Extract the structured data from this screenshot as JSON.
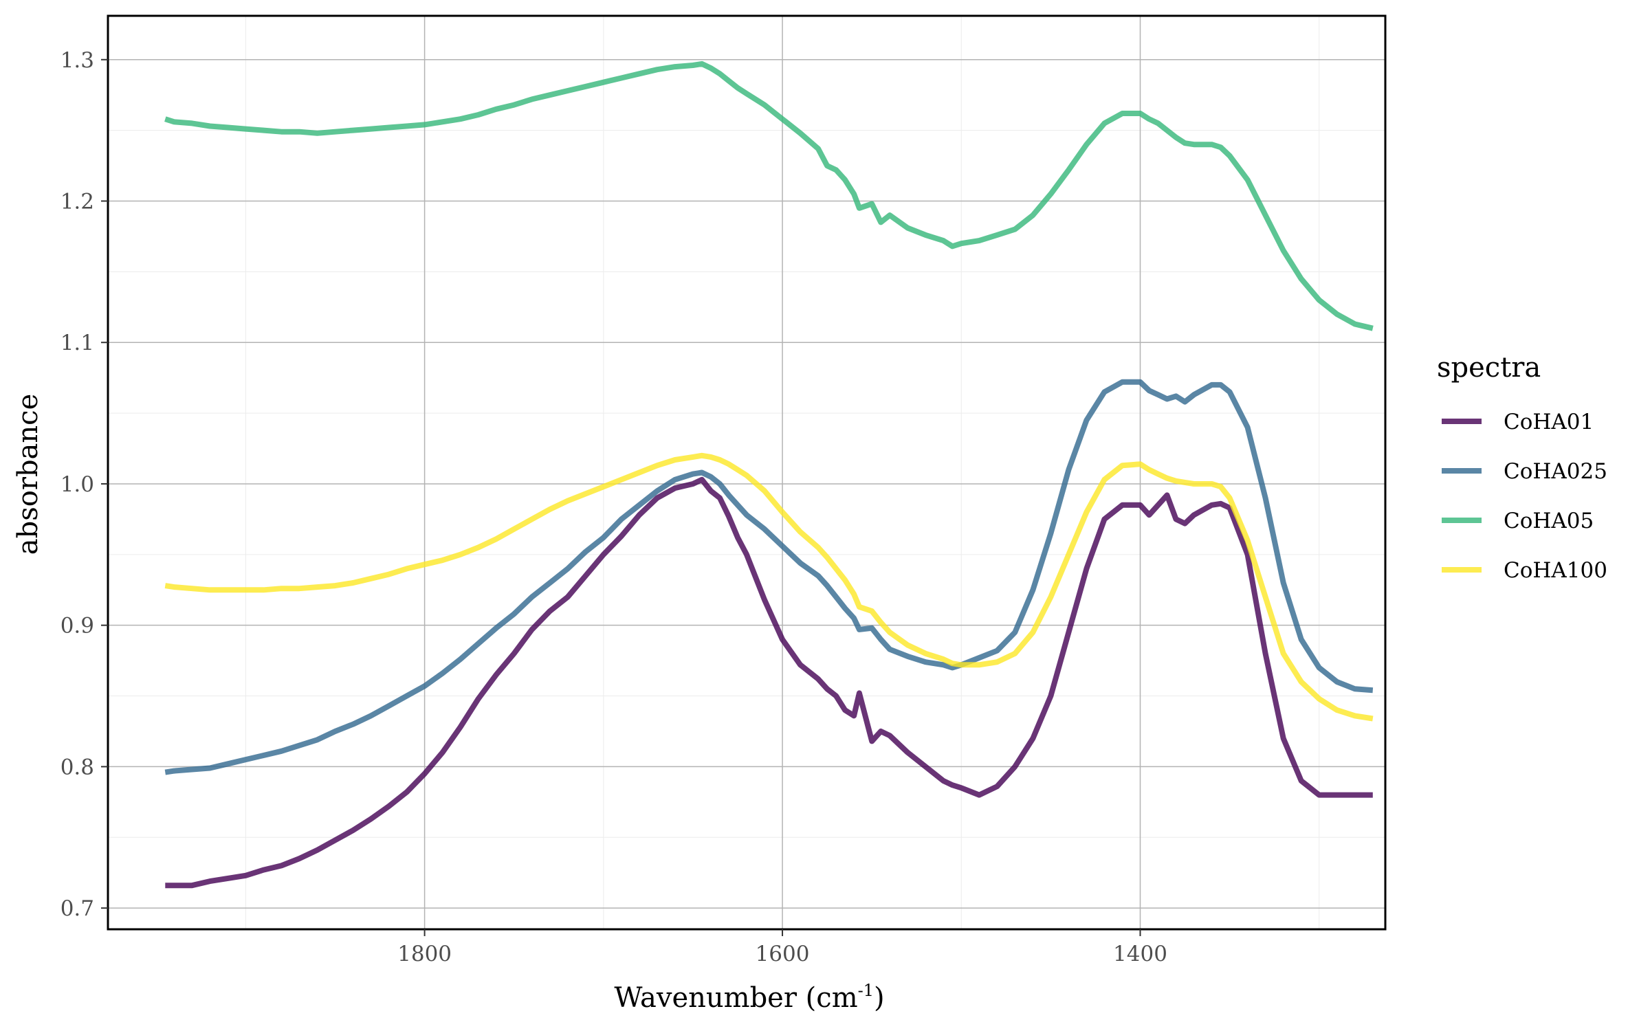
{
  "chart_data": {
    "type": "line",
    "title": "",
    "xlabel": "Wavenumber (cm",
    "xlabel_sup": "-1",
    "xlabel_close": ")",
    "ylabel": "absorbance",
    "xlim": [
      1263,
      1977
    ],
    "x_reversed": true,
    "ylim": [
      0.685,
      1.331
    ],
    "x_ticks": [
      {
        "value": 1800,
        "label": "1800"
      },
      {
        "value": 1600,
        "label": "1600"
      },
      {
        "value": 1400,
        "label": "1400"
      }
    ],
    "x_minor_ticks": [
      1900,
      1700,
      1500,
      1300
    ],
    "y_ticks": [
      {
        "value": 0.7,
        "label": "0.7"
      },
      {
        "value": 0.8,
        "label": "0.8"
      },
      {
        "value": 0.9,
        "label": "0.9"
      },
      {
        "value": 1.0,
        "label": "1.0"
      },
      {
        "value": 1.1,
        "label": "1.1"
      },
      {
        "value": 1.2,
        "label": "1.2"
      },
      {
        "value": 1.3,
        "label": "1.3"
      }
    ],
    "y_minor_ticks": [
      0.75,
      0.85,
      0.95,
      1.05,
      1.15,
      1.25
    ],
    "grid": true,
    "legend": {
      "title": "spectra",
      "position": "right"
    },
    "series": [
      {
        "name": "CoHA01",
        "color": "#440154",
        "x": [
          1945,
          1940,
          1930,
          1920,
          1910,
          1900,
          1890,
          1880,
          1870,
          1860,
          1850,
          1840,
          1830,
          1820,
          1810,
          1800,
          1790,
          1780,
          1770,
          1760,
          1750,
          1740,
          1730,
          1720,
          1710,
          1700,
          1690,
          1680,
          1670,
          1660,
          1650,
          1645,
          1640,
          1635,
          1630,
          1625,
          1620,
          1610,
          1600,
          1590,
          1580,
          1575,
          1570,
          1565,
          1560,
          1557,
          1550,
          1545,
          1540,
          1530,
          1520,
          1510,
          1505,
          1500,
          1490,
          1480,
          1470,
          1460,
          1450,
          1440,
          1430,
          1420,
          1410,
          1400,
          1395,
          1390,
          1385,
          1380,
          1375,
          1370,
          1360,
          1355,
          1350,
          1340,
          1330,
          1320,
          1310,
          1300,
          1290,
          1280,
          1270
        ],
        "y": [
          0.716,
          0.716,
          0.716,
          0.719,
          0.721,
          0.723,
          0.727,
          0.73,
          0.735,
          0.741,
          0.748,
          0.755,
          0.763,
          0.772,
          0.782,
          0.795,
          0.81,
          0.828,
          0.848,
          0.865,
          0.88,
          0.897,
          0.91,
          0.92,
          0.935,
          0.95,
          0.963,
          0.978,
          0.99,
          0.997,
          1.0,
          1.003,
          0.995,
          0.99,
          0.977,
          0.962,
          0.95,
          0.918,
          0.89,
          0.872,
          0.862,
          0.855,
          0.85,
          0.84,
          0.836,
          0.852,
          0.818,
          0.825,
          0.822,
          0.81,
          0.8,
          0.79,
          0.787,
          0.785,
          0.78,
          0.786,
          0.8,
          0.82,
          0.85,
          0.895,
          0.94,
          0.975,
          0.985,
          0.985,
          0.978,
          0.985,
          0.992,
          0.975,
          0.972,
          0.978,
          0.985,
          0.986,
          0.983,
          0.95,
          0.88,
          0.82,
          0.79,
          0.78,
          0.78,
          0.78,
          0.78
        ]
      },
      {
        "name": "CoHA025",
        "color": "#31688e",
        "x": [
          1945,
          1940,
          1930,
          1920,
          1910,
          1900,
          1890,
          1880,
          1870,
          1860,
          1850,
          1840,
          1830,
          1820,
          1810,
          1800,
          1790,
          1780,
          1770,
          1760,
          1750,
          1740,
          1730,
          1720,
          1710,
          1700,
          1690,
          1680,
          1670,
          1660,
          1650,
          1645,
          1640,
          1635,
          1630,
          1625,
          1620,
          1610,
          1600,
          1590,
          1580,
          1575,
          1570,
          1565,
          1560,
          1557,
          1550,
          1545,
          1540,
          1530,
          1520,
          1510,
          1505,
          1500,
          1490,
          1480,
          1470,
          1460,
          1450,
          1440,
          1430,
          1420,
          1410,
          1400,
          1395,
          1390,
          1385,
          1380,
          1375,
          1370,
          1360,
          1355,
          1350,
          1340,
          1330,
          1320,
          1310,
          1300,
          1290,
          1280,
          1270
        ],
        "y": [
          0.796,
          0.797,
          0.798,
          0.799,
          0.802,
          0.805,
          0.808,
          0.811,
          0.815,
          0.819,
          0.825,
          0.83,
          0.836,
          0.843,
          0.85,
          0.857,
          0.866,
          0.876,
          0.887,
          0.898,
          0.908,
          0.92,
          0.93,
          0.94,
          0.952,
          0.962,
          0.975,
          0.985,
          0.995,
          1.003,
          1.007,
          1.008,
          1.005,
          1.0,
          0.992,
          0.985,
          0.978,
          0.968,
          0.956,
          0.944,
          0.935,
          0.928,
          0.92,
          0.912,
          0.905,
          0.897,
          0.898,
          0.89,
          0.883,
          0.878,
          0.874,
          0.872,
          0.87,
          0.872,
          0.877,
          0.882,
          0.895,
          0.925,
          0.965,
          1.01,
          1.045,
          1.065,
          1.072,
          1.072,
          1.066,
          1.063,
          1.06,
          1.062,
          1.058,
          1.063,
          1.07,
          1.07,
          1.065,
          1.04,
          0.99,
          0.93,
          0.89,
          0.87,
          0.86,
          0.855,
          0.854
        ]
      },
      {
        "name": "CoHA05",
        "color": "#35b779",
        "x": [
          1945,
          1940,
          1930,
          1920,
          1910,
          1900,
          1890,
          1880,
          1870,
          1860,
          1850,
          1840,
          1830,
          1820,
          1810,
          1800,
          1790,
          1780,
          1770,
          1760,
          1750,
          1740,
          1730,
          1720,
          1710,
          1700,
          1690,
          1680,
          1670,
          1660,
          1650,
          1645,
          1640,
          1635,
          1630,
          1625,
          1620,
          1610,
          1600,
          1590,
          1580,
          1575,
          1570,
          1565,
          1560,
          1557,
          1550,
          1545,
          1540,
          1530,
          1520,
          1510,
          1505,
          1500,
          1490,
          1480,
          1470,
          1460,
          1450,
          1440,
          1430,
          1420,
          1410,
          1400,
          1395,
          1390,
          1385,
          1380,
          1375,
          1370,
          1360,
          1355,
          1350,
          1340,
          1330,
          1320,
          1310,
          1300,
          1290,
          1280,
          1270
        ],
        "y": [
          1.258,
          1.256,
          1.255,
          1.253,
          1.252,
          1.251,
          1.25,
          1.249,
          1.249,
          1.248,
          1.249,
          1.25,
          1.251,
          1.252,
          1.253,
          1.254,
          1.256,
          1.258,
          1.261,
          1.265,
          1.268,
          1.272,
          1.275,
          1.278,
          1.281,
          1.284,
          1.287,
          1.29,
          1.293,
          1.295,
          1.296,
          1.297,
          1.294,
          1.29,
          1.285,
          1.28,
          1.276,
          1.268,
          1.258,
          1.248,
          1.237,
          1.225,
          1.222,
          1.215,
          1.205,
          1.195,
          1.198,
          1.185,
          1.19,
          1.181,
          1.176,
          1.172,
          1.168,
          1.17,
          1.172,
          1.176,
          1.18,
          1.19,
          1.205,
          1.222,
          1.24,
          1.255,
          1.262,
          1.262,
          1.258,
          1.255,
          1.25,
          1.245,
          1.241,
          1.24,
          1.24,
          1.238,
          1.232,
          1.215,
          1.19,
          1.165,
          1.145,
          1.13,
          1.12,
          1.113,
          1.11
        ]
      },
      {
        "name": "CoHA100",
        "color": "#fde725",
        "x": [
          1945,
          1940,
          1930,
          1920,
          1910,
          1900,
          1890,
          1880,
          1870,
          1860,
          1850,
          1840,
          1830,
          1820,
          1810,
          1800,
          1790,
          1780,
          1770,
          1760,
          1750,
          1740,
          1730,
          1720,
          1710,
          1700,
          1690,
          1680,
          1670,
          1660,
          1650,
          1645,
          1640,
          1635,
          1630,
          1625,
          1620,
          1610,
          1600,
          1590,
          1580,
          1575,
          1570,
          1565,
          1560,
          1557,
          1550,
          1545,
          1540,
          1530,
          1520,
          1510,
          1505,
          1500,
          1490,
          1480,
          1470,
          1460,
          1450,
          1440,
          1430,
          1420,
          1410,
          1400,
          1395,
          1390,
          1385,
          1380,
          1375,
          1370,
          1360,
          1355,
          1350,
          1340,
          1330,
          1320,
          1310,
          1300,
          1290,
          1280,
          1270
        ],
        "y": [
          0.928,
          0.927,
          0.926,
          0.925,
          0.925,
          0.925,
          0.925,
          0.926,
          0.926,
          0.927,
          0.928,
          0.93,
          0.933,
          0.936,
          0.94,
          0.943,
          0.946,
          0.95,
          0.955,
          0.961,
          0.968,
          0.975,
          0.982,
          0.988,
          0.993,
          0.998,
          1.003,
          1.008,
          1.013,
          1.017,
          1.019,
          1.02,
          1.019,
          1.017,
          1.014,
          1.01,
          1.006,
          0.995,
          0.98,
          0.966,
          0.955,
          0.948,
          0.94,
          0.932,
          0.922,
          0.913,
          0.91,
          0.902,
          0.895,
          0.886,
          0.88,
          0.876,
          0.873,
          0.872,
          0.872,
          0.874,
          0.88,
          0.895,
          0.92,
          0.95,
          0.98,
          1.003,
          1.013,
          1.014,
          1.01,
          1.007,
          1.004,
          1.002,
          1.001,
          1.0,
          1.0,
          0.998,
          0.99,
          0.96,
          0.92,
          0.88,
          0.86,
          0.848,
          0.84,
          0.836,
          0.834
        ]
      }
    ]
  }
}
